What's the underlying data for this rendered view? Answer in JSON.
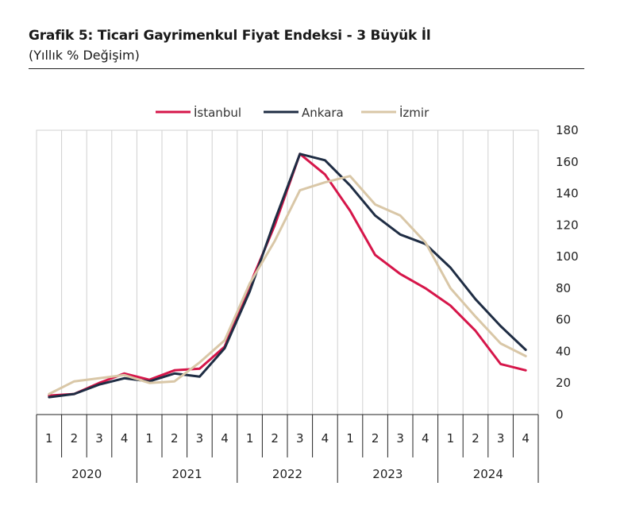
{
  "header": {
    "title": "Grafik 5: Ticari Gayrimenkul Fiyat Endeksi - 3 Büyük İl",
    "subtitle": "(Yıllık % Değişim)"
  },
  "chart_data": {
    "type": "line",
    "title": "Grafik 5: Ticari Gayrimenkul Fiyat Endeksi - 3 Büyük İl",
    "ylabel": "(Yıllık % Değişim)",
    "ylim": [
      0,
      180
    ],
    "yticks": [
      0,
      20,
      40,
      60,
      80,
      100,
      120,
      140,
      160,
      180
    ],
    "grid": "vertical",
    "legend": "top",
    "years": [
      "2020",
      "2021",
      "2022",
      "2023",
      "2024"
    ],
    "quarters": [
      "1",
      "2",
      "3",
      "4"
    ],
    "categories": [
      "2020-1",
      "2020-2",
      "2020-3",
      "2020-4",
      "2021-1",
      "2021-2",
      "2021-3",
      "2021-4",
      "2022-1",
      "2022-2",
      "2022-3",
      "2022-4",
      "2023-1",
      "2023-2",
      "2023-3",
      "2023-4",
      "2024-1",
      "2024-2",
      "2024-3",
      "2024-4"
    ],
    "series": [
      {
        "name": "İstanbul",
        "color": "#d6164a",
        "values": [
          12,
          13,
          20,
          26,
          22,
          28,
          29,
          43,
          82,
          120,
          165,
          152,
          129,
          101,
          89,
          80,
          69,
          53,
          32,
          28
        ]
      },
      {
        "name": "Ankara",
        "color": "#1f2d44",
        "values": [
          11,
          13,
          19,
          23,
          21,
          26,
          24,
          42,
          78,
          123,
          165,
          161,
          145,
          126,
          114,
          108,
          93,
          73,
          56,
          41
        ]
      },
      {
        "name": "İzmir",
        "color": "#d9c7a7",
        "values": [
          13,
          21,
          23,
          25,
          20,
          21,
          33,
          47,
          83,
          110,
          142,
          147,
          151,
          133,
          126,
          109,
          80,
          62,
          45,
          37
        ]
      }
    ]
  }
}
